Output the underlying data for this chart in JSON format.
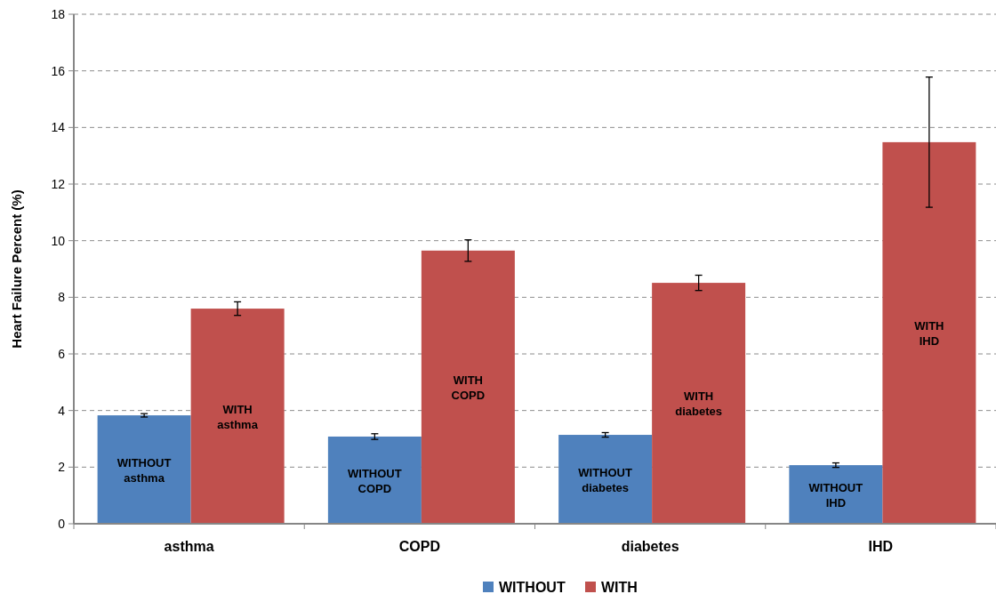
{
  "chart_data": {
    "type": "bar",
    "ylabel": "Heart Failure Percent (%)",
    "categories": [
      "asthma",
      "COPD",
      "diabetes",
      "IHD"
    ],
    "series": [
      {
        "name": "WITHOUT",
        "color": "#4f81bd",
        "values": [
          3.83,
          3.08,
          3.14,
          2.07
        ],
        "errors": [
          0.06,
          0.1,
          0.08,
          0.08
        ]
      },
      {
        "name": "WITH",
        "color": "#c0504d",
        "values": [
          7.6,
          9.65,
          8.51,
          13.48
        ],
        "errors": [
          0.24,
          0.38,
          0.27,
          2.3
        ]
      }
    ],
    "ylim": [
      0,
      18
    ],
    "yticks": [
      0,
      2,
      4,
      6,
      8,
      10,
      12,
      14,
      16,
      18
    ],
    "grid": "y",
    "legend": "bottom",
    "annotations": [
      "WITHOUT asthma",
      "WITHOUT COPD",
      "WITHOUT diabetes",
      "WITHOUT IHD",
      "WITH asthma",
      "WITH COPD",
      "WITH diabetes",
      "WITH IHD"
    ]
  }
}
